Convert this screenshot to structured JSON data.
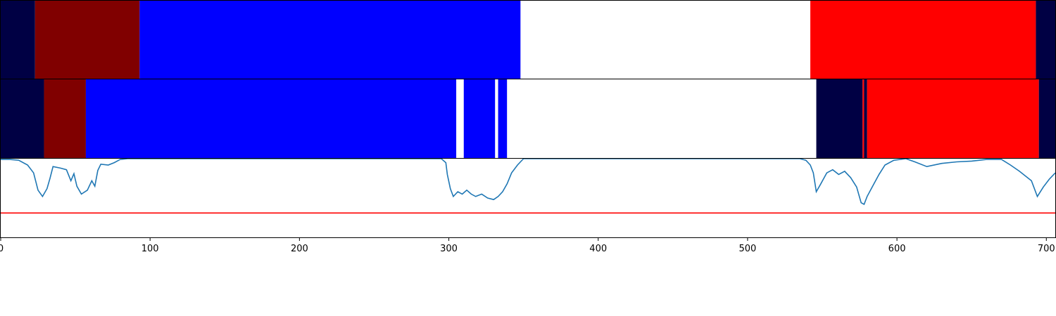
{
  "chart_data": [
    {
      "type": "heatmap",
      "xlim": [
        0,
        706
      ],
      "segments": [
        {
          "start": 0,
          "end": 23,
          "color": "#000044"
        },
        {
          "start": 23,
          "end": 93,
          "color": "#800000"
        },
        {
          "start": 93,
          "end": 348,
          "color": "#0000ff"
        },
        {
          "start": 348,
          "end": 542,
          "color": "#ffffff"
        },
        {
          "start": 542,
          "end": 693,
          "color": "#ff0000"
        },
        {
          "start": 693,
          "end": 706,
          "color": "#000044"
        }
      ]
    },
    {
      "type": "heatmap",
      "xlim": [
        0,
        706
      ],
      "segments": [
        {
          "start": 0,
          "end": 29,
          "color": "#000044"
        },
        {
          "start": 29,
          "end": 57,
          "color": "#800000"
        },
        {
          "start": 57,
          "end": 305,
          "color": "#0000ff"
        },
        {
          "start": 305,
          "end": 310,
          "color": "#ffffff"
        },
        {
          "start": 310,
          "end": 331,
          "color": "#0000ff"
        },
        {
          "start": 331,
          "end": 333,
          "color": "#ffffff"
        },
        {
          "start": 333,
          "end": 339,
          "color": "#0000ff"
        },
        {
          "start": 339,
          "end": 546,
          "color": "#ffffff"
        },
        {
          "start": 546,
          "end": 577,
          "color": "#000044"
        },
        {
          "start": 577,
          "end": 578,
          "color": "#ff0000"
        },
        {
          "start": 578,
          "end": 580,
          "color": "#000044"
        },
        {
          "start": 580,
          "end": 695,
          "color": "#ff0000"
        },
        {
          "start": 695,
          "end": 706,
          "color": "#000044"
        }
      ]
    },
    {
      "type": "line",
      "xlim": [
        0,
        706
      ],
      "ylim": [
        0,
        1
      ],
      "series": [
        {
          "color": "#1f77b4",
          "points": [
            [
              0,
              0.99
            ],
            [
              6,
              0.99
            ],
            [
              12,
              0.98
            ],
            [
              18,
              0.92
            ],
            [
              22,
              0.82
            ],
            [
              25,
              0.6
            ],
            [
              28,
              0.52
            ],
            [
              31,
              0.62
            ],
            [
              33,
              0.75
            ],
            [
              35,
              0.9
            ],
            [
              40,
              0.88
            ],
            [
              44,
              0.86
            ],
            [
              47,
              0.72
            ],
            [
              49,
              0.81
            ],
            [
              51,
              0.65
            ],
            [
              54,
              0.55
            ],
            [
              58,
              0.6
            ],
            [
              61,
              0.72
            ],
            [
              63,
              0.65
            ],
            [
              65,
              0.85
            ],
            [
              67,
              0.93
            ],
            [
              72,
              0.92
            ],
            [
              76,
              0.95
            ],
            [
              80,
              0.99
            ],
            [
              85,
              1.0
            ],
            [
              295,
              1.0
            ],
            [
              298,
              0.95
            ],
            [
              299,
              0.8
            ],
            [
              301,
              0.62
            ],
            [
              303,
              0.52
            ],
            [
              306,
              0.58
            ],
            [
              309,
              0.55
            ],
            [
              312,
              0.6
            ],
            [
              315,
              0.55
            ],
            [
              318,
              0.52
            ],
            [
              322,
              0.55
            ],
            [
              326,
              0.5
            ],
            [
              330,
              0.48
            ],
            [
              333,
              0.52
            ],
            [
              336,
              0.58
            ],
            [
              339,
              0.68
            ],
            [
              342,
              0.82
            ],
            [
              346,
              0.92
            ],
            [
              350,
              1.0
            ],
            [
              535,
              1.0
            ],
            [
              539,
              0.98
            ],
            [
              542,
              0.92
            ],
            [
              544,
              0.82
            ],
            [
              546,
              0.58
            ],
            [
              549,
              0.68
            ],
            [
              553,
              0.82
            ],
            [
              557,
              0.86
            ],
            [
              561,
              0.8
            ],
            [
              565,
              0.84
            ],
            [
              569,
              0.76
            ],
            [
              573,
              0.64
            ],
            [
              576,
              0.44
            ],
            [
              578,
              0.42
            ],
            [
              580,
              0.52
            ],
            [
              584,
              0.66
            ],
            [
              588,
              0.8
            ],
            [
              592,
              0.92
            ],
            [
              598,
              0.98
            ],
            [
              606,
              1.0
            ],
            [
              612,
              0.96
            ],
            [
              620,
              0.9
            ],
            [
              630,
              0.94
            ],
            [
              640,
              0.96
            ],
            [
              650,
              0.97
            ],
            [
              660,
              0.99
            ],
            [
              670,
              0.99
            ],
            [
              676,
              0.92
            ],
            [
              682,
              0.84
            ],
            [
              690,
              0.72
            ],
            [
              694,
              0.52
            ],
            [
              698,
              0.64
            ],
            [
              702,
              0.74
            ],
            [
              706,
              0.82
            ]
          ]
        }
      ],
      "threshold": {
        "y": 0.31,
        "color": "#ff0000"
      },
      "xticks": [
        0,
        100,
        200,
        300,
        400,
        500,
        600,
        700
      ]
    }
  ]
}
